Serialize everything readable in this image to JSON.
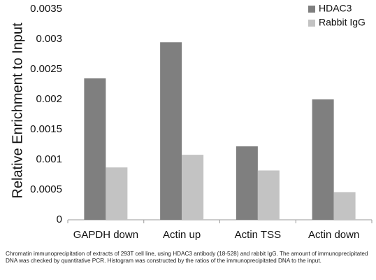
{
  "chart_data": {
    "type": "bar",
    "categories": [
      "GAPDH down",
      "Actin up",
      "Actin TSS",
      "Actin down"
    ],
    "series": [
      {
        "name": "HDAC3",
        "values": [
          0.00235,
          0.00295,
          0.00122,
          0.002
        ],
        "color": "#7f7f7f"
      },
      {
        "name": "Rabbit IgG",
        "values": [
          0.00087,
          0.00108,
          0.00082,
          0.00046
        ],
        "color": "#c3c3c3"
      }
    ],
    "ylabel": "Relative Enrichment to Input",
    "xlabel": "",
    "ylim": [
      0,
      0.0035
    ],
    "yticks": [
      0,
      0.0005,
      0.001,
      0.0015,
      0.002,
      0.0025,
      0.003,
      0.0035
    ],
    "ytick_labels": [
      "0",
      "0.0005",
      "0.001",
      "0.0015",
      "0.002",
      "0.0025",
      "0.003",
      "0.0035"
    ],
    "grid": false,
    "legend_position": "top-right"
  },
  "caption": "Chromatin immunoprecipitation of extracts of 293T cell line, using HDAC3 antibody (18-528) and rabbit IgG. The amount of immunoprecipitated DNA was checked by quantitative PCR. Histogram was constructed by the ratios of the immunoprecipitated DNA to the input."
}
